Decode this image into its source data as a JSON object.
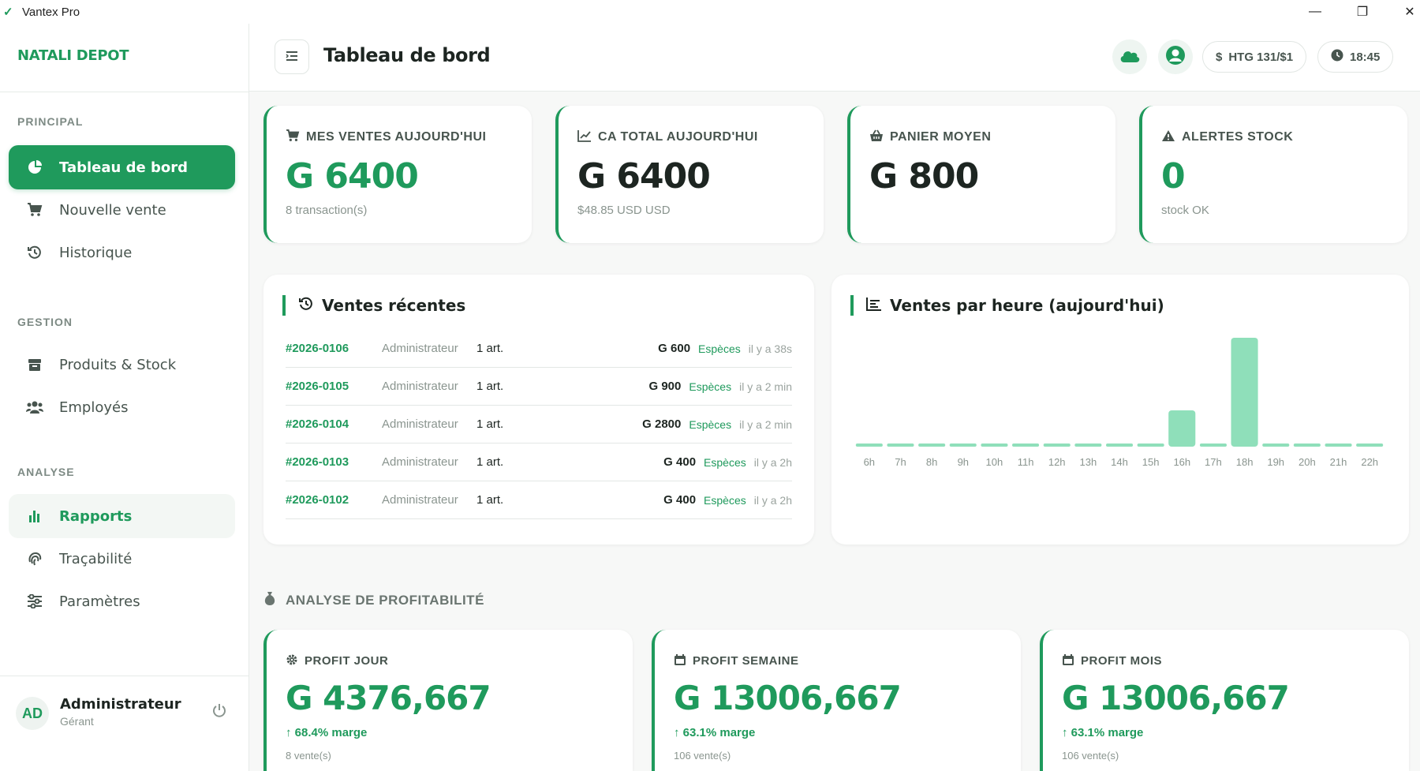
{
  "window": {
    "app_name": "Vantex Pro",
    "minimize": "—",
    "maximize": "❐",
    "close": "✕"
  },
  "sidebar": {
    "brand": "NATALI DEPOT",
    "sections": {
      "principal": "PRINCIPAL",
      "gestion": "GESTION",
      "analyse": "ANALYSE"
    },
    "items": [
      {
        "label": "Tableau de bord",
        "icon": "pie-chart-icon",
        "state": "active"
      },
      {
        "label": "Nouvelle vente",
        "icon": "cart-icon"
      },
      {
        "label": "Historique",
        "icon": "history-icon"
      },
      {
        "label": "Produits & Stock",
        "icon": "box-icon"
      },
      {
        "label": "Employés",
        "icon": "users-icon"
      },
      {
        "label": "Rapports",
        "icon": "bar-chart-icon",
        "state": "highlight"
      },
      {
        "label": "Traçabilité",
        "icon": "fingerprint-icon"
      },
      {
        "label": "Paramètres",
        "icon": "sliders-icon"
      }
    ],
    "user": {
      "initials": "AD",
      "name": "Administrateur",
      "role": "Gérant"
    }
  },
  "header": {
    "title": "Tableau de bord",
    "exchange_rate": "HTG 131/$1",
    "time": "18:45"
  },
  "stats": [
    {
      "label": "MES VENTES AUJOURD'HUI",
      "value": "G 6400",
      "sub": "8 transaction(s)",
      "value_color": "#1f9a5c",
      "icon": "cart-icon"
    },
    {
      "label": "CA TOTAL AUJOURD'HUI",
      "value": "G 6400",
      "sub": "$48.85 USD USD",
      "value_color": "#1d2521",
      "icon": "line-chart-icon"
    },
    {
      "label": "PANIER MOYEN",
      "value": "G 800",
      "sub": "",
      "value_color": "#1d2521",
      "icon": "basket-icon"
    },
    {
      "label": "ALERTES STOCK",
      "value": "0",
      "sub": "stock OK",
      "value_color": "#1f9a5c",
      "icon": "warning-icon"
    }
  ],
  "recent_sales": {
    "title": "Ventes récentes",
    "rows": [
      {
        "id": "#2026-0106",
        "user": "Administrateur",
        "qty": "1 art.",
        "amount": "G 600",
        "method": "Espèces",
        "time": "il y a 38s"
      },
      {
        "id": "#2026-0105",
        "user": "Administrateur",
        "qty": "1 art.",
        "amount": "G 900",
        "method": "Espèces",
        "time": "il y a 2 min"
      },
      {
        "id": "#2026-0104",
        "user": "Administrateur",
        "qty": "1 art.",
        "amount": "G 2800",
        "method": "Espèces",
        "time": "il y a 2 min"
      },
      {
        "id": "#2026-0103",
        "user": "Administrateur",
        "qty": "1 art.",
        "amount": "G 400",
        "method": "Espèces",
        "time": "il y a 2h"
      },
      {
        "id": "#2026-0102",
        "user": "Administrateur",
        "qty": "1 art.",
        "amount": "G 400",
        "method": "Espèces",
        "time": "il y a 2h"
      }
    ]
  },
  "hourly": {
    "title": "Ventes par heure (aujourd'hui)"
  },
  "chart_data": {
    "type": "bar",
    "title": "Ventes par heure (aujourd'hui)",
    "categories": [
      "6h",
      "7h",
      "8h",
      "9h",
      "10h",
      "11h",
      "12h",
      "13h",
      "14h",
      "15h",
      "16h",
      "17h",
      "18h",
      "19h",
      "20h",
      "21h",
      "22h"
    ],
    "values": [
      0,
      0,
      0,
      0,
      0,
      0,
      0,
      0,
      0,
      0,
      2,
      0,
      6,
      0,
      0,
      0,
      0
    ],
    "bar_color": "#8fdfba",
    "grid": false,
    "legend": "none"
  },
  "profitability": {
    "title": "ANALYSE DE PROFITABILITÉ",
    "cards": [
      {
        "label": "PROFIT JOUR",
        "value": "G 4376,667",
        "margin": "↑ 68.4% marge",
        "count": "8 vente(s)",
        "icon": "gear-icon"
      },
      {
        "label": "PROFIT SEMAINE",
        "value": "G 13006,667",
        "margin": "↑ 63.1% marge",
        "count": "106 vente(s)",
        "icon": "calendar-icon"
      },
      {
        "label": "PROFIT MOIS",
        "value": "G 13006,667",
        "margin": "↑ 63.1% marge",
        "count": "106 vente(s)",
        "icon": "calendar-icon"
      }
    ]
  },
  "colors": {
    "accent": "#1f9a5c",
    "accent_light": "#8fdfba",
    "text": "#1d2521",
    "muted": "#8a958f"
  }
}
